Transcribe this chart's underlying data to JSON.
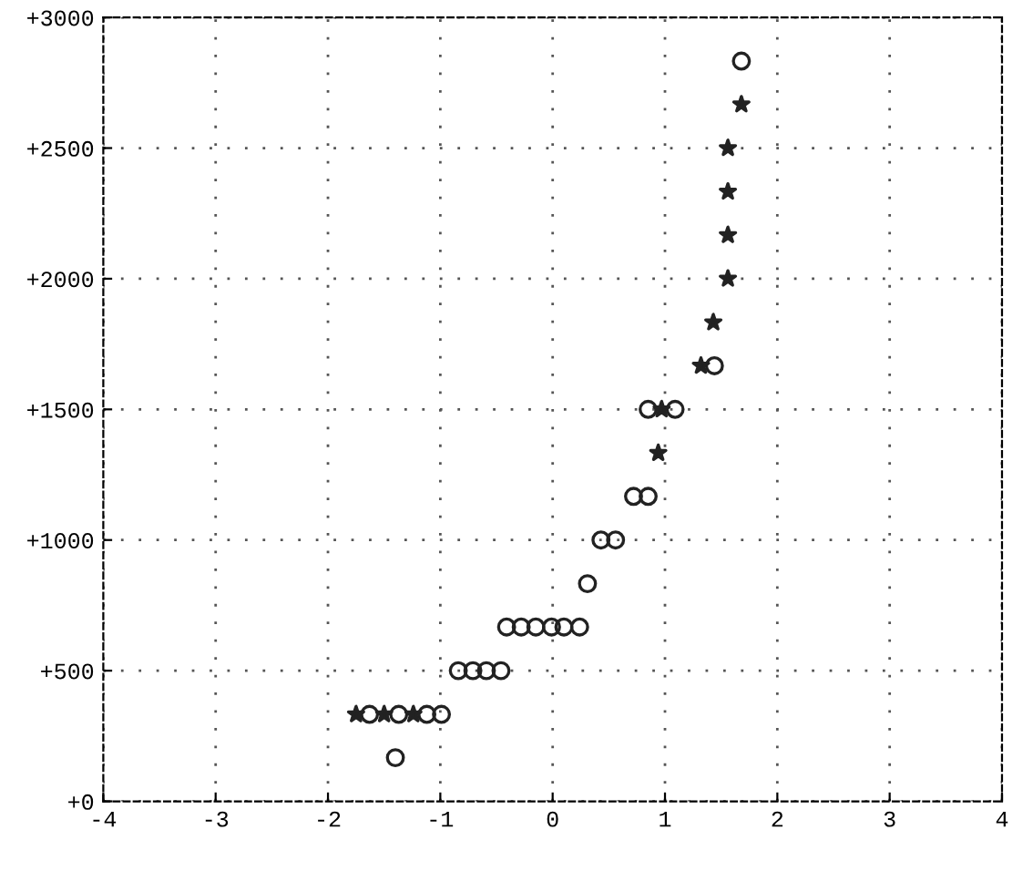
{
  "chart_data": {
    "type": "scatter",
    "series": [
      {
        "color": "#222222",
        "marker": "circle",
        "x": [
          -1.4,
          -1.63,
          -1.37,
          -1.12,
          -0.99,
          -0.84,
          -0.71,
          -0.59,
          -0.46,
          -0.41,
          -0.28,
          -0.15,
          -0.01,
          0.1,
          0.24,
          0.31,
          0.43,
          0.56,
          0.72,
          0.85,
          0.85,
          1.09,
          1.44,
          1.68
        ],
        "values": [
          167,
          333,
          333,
          333,
          333,
          500,
          500,
          500,
          500,
          667,
          667,
          667,
          667,
          667,
          667,
          833,
          1000,
          1000,
          1167,
          1167,
          1500,
          1500,
          1667,
          2833
        ]
      },
      {
        "color": "#222222",
        "marker": "star",
        "x": [
          -1.75,
          -1.5,
          -1.24,
          0.94,
          0.97,
          1.32,
          1.43,
          1.56,
          1.56,
          1.56,
          1.56,
          1.68
        ],
        "values": [
          333,
          333,
          333,
          1333,
          1500,
          1667,
          1833,
          2000,
          2167,
          2333,
          2500,
          2667
        ]
      }
    ],
    "xlim": [
      -4,
      4
    ],
    "xticks": [
      -4,
      -3,
      -2,
      -1,
      0,
      1,
      2,
      3,
      4
    ],
    "ylim": [
      0,
      3000
    ],
    "yticks": [
      {
        "value": 0,
        "label": "+0"
      },
      {
        "value": 500,
        "label": "+500"
      },
      {
        "value": 1000,
        "label": "+1000"
      },
      {
        "value": 1500,
        "label": "+1500"
      },
      {
        "value": 2000,
        "label": "+2000"
      },
      {
        "value": 2500,
        "label": "+2500"
      },
      {
        "value": 3000,
        "label": "+3000"
      }
    ],
    "grid": true
  }
}
